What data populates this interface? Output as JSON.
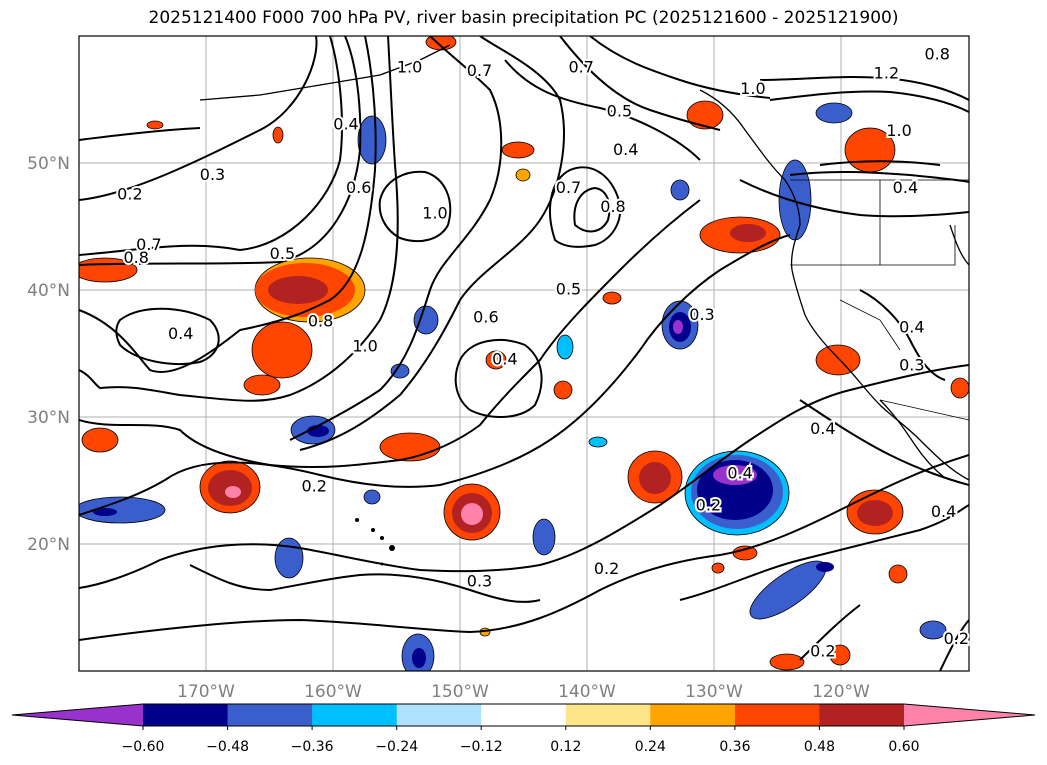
{
  "title": "2025121400 F000 700 hPa PV, river basin precipitation PC (2025121600 - 2025121900)",
  "map": {
    "lat_ticks": [
      "50°N",
      "40°N",
      "30°N",
      "20°N"
    ],
    "lon_ticks": [
      "170°W",
      "160°W",
      "150°W",
      "140°W",
      "130°W",
      "120°W"
    ],
    "lat_range": [
      10,
      60
    ],
    "lon_range": [
      -180,
      -110
    ],
    "gridlines": true,
    "colors": {
      "contour": "#000000",
      "grid": "#b0b0b0",
      "coast": "#000000"
    }
  },
  "contour_labels": [
    {
      "text": "0.2",
      "lon": -176,
      "lat": 47.5
    },
    {
      "text": "0.3",
      "lon": -169.5,
      "lat": 49
    },
    {
      "text": "0.7",
      "lon": -174.5,
      "lat": 43.5
    },
    {
      "text": "0.8",
      "lon": -175.5,
      "lat": 42.5
    },
    {
      "text": "0.5",
      "lon": -164,
      "lat": 42.8
    },
    {
      "text": "0.4",
      "lon": -159,
      "lat": 53
    },
    {
      "text": "0.6",
      "lon": -158,
      "lat": 48
    },
    {
      "text": "0.4",
      "lon": -172,
      "lat": 36.5
    },
    {
      "text": "0.8",
      "lon": -161,
      "lat": 37.5
    },
    {
      "text": "1.0",
      "lon": -157.5,
      "lat": 35.5
    },
    {
      "text": "1.0",
      "lon": -152,
      "lat": 46
    },
    {
      "text": "1.0",
      "lon": -154,
      "lat": 57.5
    },
    {
      "text": "0.7",
      "lon": -148.5,
      "lat": 57.2
    },
    {
      "text": "0.6",
      "lon": -148,
      "lat": 37.8
    },
    {
      "text": "0.4",
      "lon": -146.5,
      "lat": 34.5
    },
    {
      "text": "0.5",
      "lon": -141.5,
      "lat": 40
    },
    {
      "text": "0.7",
      "lon": -141.5,
      "lat": 48
    },
    {
      "text": "0.8",
      "lon": -138,
      "lat": 46.5
    },
    {
      "text": "0.4",
      "lon": -137,
      "lat": 51
    },
    {
      "text": "0.5",
      "lon": -137.5,
      "lat": 54
    },
    {
      "text": "0.7",
      "lon": -140.5,
      "lat": 57.5
    },
    {
      "text": "1.0",
      "lon": -127,
      "lat": 55.8
    },
    {
      "text": "1.2",
      "lon": -116.5,
      "lat": 57
    },
    {
      "text": "1.0",
      "lon": -115.5,
      "lat": 52.5
    },
    {
      "text": "0.8",
      "lon": -112.5,
      "lat": 58.5
    },
    {
      "text": "0.4",
      "lon": -115,
      "lat": 48
    },
    {
      "text": "0.3",
      "lon": -131,
      "lat": 38
    },
    {
      "text": "0.4",
      "lon": -128,
      "lat": 25.5
    },
    {
      "text": "0.2",
      "lon": -130.5,
      "lat": 23
    },
    {
      "text": "0.4",
      "lon": -112,
      "lat": 22.5
    },
    {
      "text": "0.4",
      "lon": -114.5,
      "lat": 37
    },
    {
      "text": "0.3",
      "lon": -114.5,
      "lat": 34
    },
    {
      "text": "0.4",
      "lon": -121.5,
      "lat": 29
    },
    {
      "text": "0.2",
      "lon": -161.5,
      "lat": 24.5
    },
    {
      "text": "0.3",
      "lon": -148.5,
      "lat": 17
    },
    {
      "text": "0.2",
      "lon": -138.5,
      "lat": 18
    },
    {
      "text": "0.2",
      "lon": -121.5,
      "lat": 11.5
    },
    {
      "text": "0.2",
      "lon": -111,
      "lat": 12.5
    }
  ],
  "colorbar": {
    "tick_labels": [
      "−0.60",
      "−0.48",
      "−0.36",
      "−0.24",
      "−0.12",
      "0.12",
      "0.24",
      "0.36",
      "0.48",
      "0.60"
    ],
    "colors": [
      "#9932cc",
      "#00008b",
      "#3a5fcd",
      "#00bfff",
      "#b0e2ff",
      "#ffffff",
      "#fde68a",
      "#ffa500",
      "#ff4500",
      "#b22222",
      "#ff82ab"
    ]
  }
}
